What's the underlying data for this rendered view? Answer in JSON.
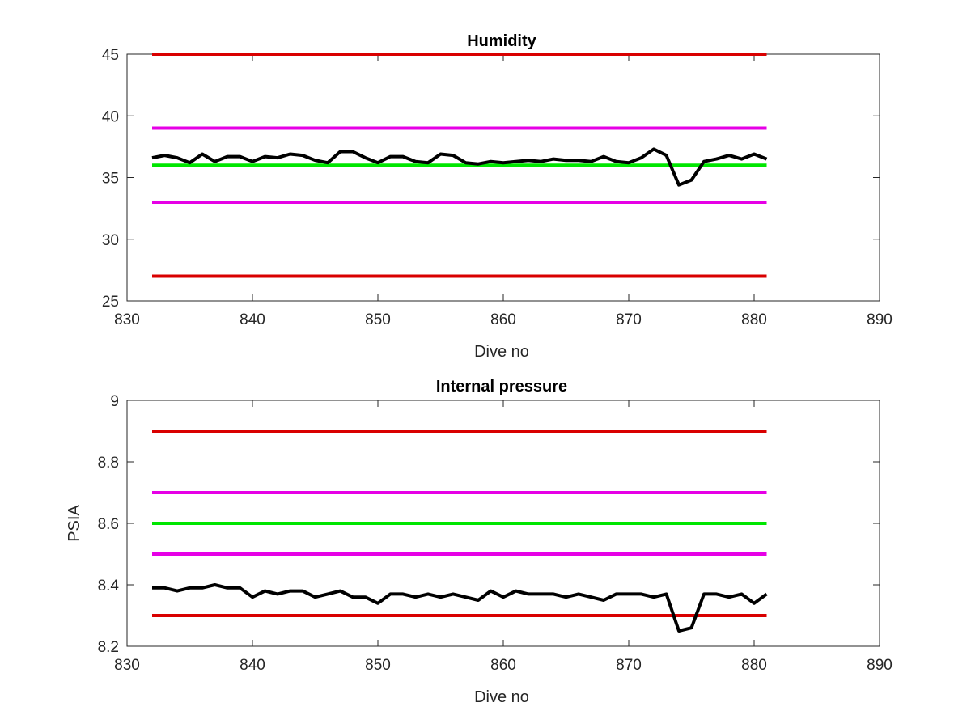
{
  "chart_data": [
    {
      "type": "line",
      "title": "Humidity",
      "xlabel": "Dive no",
      "ylabel": "",
      "xlim": [
        830,
        890
      ],
      "ylim": [
        25,
        45
      ],
      "xticks": [
        "830",
        "840",
        "850",
        "860",
        "870",
        "880",
        "890"
      ],
      "yticks": [
        "25",
        "30",
        "35",
        "40",
        "45"
      ],
      "grid": false,
      "legend": "none",
      "reference_lines": [
        {
          "y": 45,
          "x_range": [
            832,
            881
          ],
          "color": "#d90000"
        },
        {
          "y": 39,
          "x_range": [
            832,
            881
          ],
          "color": "#e600e6"
        },
        {
          "y": 36,
          "x_range": [
            832,
            881
          ],
          "color": "#00e600"
        },
        {
          "y": 33,
          "x_range": [
            832,
            881
          ],
          "color": "#e600e6"
        },
        {
          "y": 27,
          "x_range": [
            832,
            881
          ],
          "color": "#d90000"
        }
      ],
      "series": [
        {
          "color": "#000000",
          "x": [
            832,
            833,
            834,
            835,
            836,
            837,
            838,
            839,
            840,
            841,
            842,
            843,
            844,
            845,
            846,
            847,
            848,
            849,
            850,
            851,
            852,
            853,
            854,
            855,
            856,
            857,
            858,
            859,
            860,
            861,
            862,
            863,
            864,
            865,
            866,
            867,
            868,
            869,
            870,
            871,
            872,
            873,
            874,
            875,
            876,
            877,
            878,
            879,
            880,
            881
          ],
          "values": [
            36.6,
            36.8,
            36.6,
            36.2,
            36.9,
            36.3,
            36.7,
            36.7,
            36.3,
            36.7,
            36.6,
            36.9,
            36.8,
            36.4,
            36.2,
            37.1,
            37.1,
            36.6,
            36.2,
            36.7,
            36.7,
            36.3,
            36.2,
            36.9,
            36.8,
            36.2,
            36.1,
            36.3,
            36.2,
            36.3,
            36.4,
            36.3,
            36.5,
            36.4,
            36.4,
            36.3,
            36.7,
            36.3,
            36.2,
            36.6,
            37.3,
            36.8,
            34.4,
            34.8,
            36.3,
            36.5,
            36.8,
            36.5,
            36.9,
            36.5
          ]
        }
      ]
    },
    {
      "type": "line",
      "title": "Internal pressure",
      "xlabel": "Dive no",
      "ylabel": "PSIA",
      "xlim": [
        830,
        890
      ],
      "ylim": [
        8.2,
        9
      ],
      "xticks": [
        "830",
        "840",
        "850",
        "860",
        "870",
        "880",
        "890"
      ],
      "yticks": [
        "8.2",
        "8.4",
        "8.6",
        "8.8",
        "9"
      ],
      "grid": false,
      "legend": "none",
      "reference_lines": [
        {
          "y": 8.9,
          "x_range": [
            832,
            881
          ],
          "color": "#d90000"
        },
        {
          "y": 8.7,
          "x_range": [
            832,
            881
          ],
          "color": "#e600e6"
        },
        {
          "y": 8.6,
          "x_range": [
            832,
            881
          ],
          "color": "#00e600"
        },
        {
          "y": 8.5,
          "x_range": [
            832,
            881
          ],
          "color": "#e600e6"
        },
        {
          "y": 8.3,
          "x_range": [
            832,
            881
          ],
          "color": "#d90000"
        }
      ],
      "series": [
        {
          "color": "#000000",
          "x": [
            832,
            833,
            834,
            835,
            836,
            837,
            838,
            839,
            840,
            841,
            842,
            843,
            844,
            845,
            846,
            847,
            848,
            849,
            850,
            851,
            852,
            853,
            854,
            855,
            856,
            857,
            858,
            859,
            860,
            861,
            862,
            863,
            864,
            865,
            866,
            867,
            868,
            869,
            870,
            871,
            872,
            873,
            874,
            875,
            876,
            877,
            878,
            879,
            880,
            881
          ],
          "values": [
            8.39,
            8.39,
            8.38,
            8.39,
            8.39,
            8.4,
            8.39,
            8.39,
            8.36,
            8.38,
            8.37,
            8.38,
            8.38,
            8.36,
            8.37,
            8.38,
            8.36,
            8.36,
            8.34,
            8.37,
            8.37,
            8.36,
            8.37,
            8.36,
            8.37,
            8.36,
            8.35,
            8.38,
            8.36,
            8.38,
            8.37,
            8.37,
            8.37,
            8.36,
            8.37,
            8.36,
            8.35,
            8.37,
            8.37,
            8.37,
            8.36,
            8.37,
            8.25,
            8.26,
            8.37,
            8.37,
            8.36,
            8.37,
            8.34,
            8.37
          ]
        }
      ]
    }
  ]
}
